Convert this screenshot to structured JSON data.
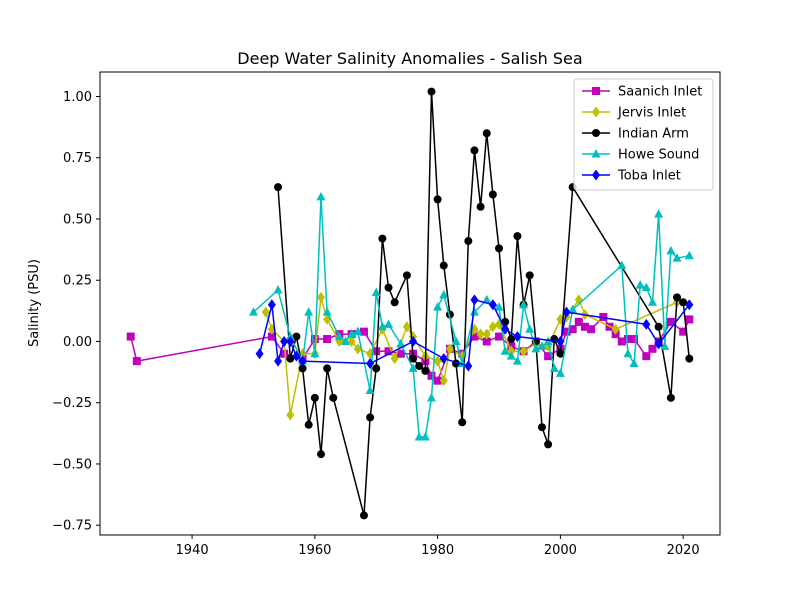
{
  "chart_data": {
    "type": "line",
    "title": "Deep Water Salinity Anomalies - Salish Sea",
    "xlabel": "",
    "ylabel": "Salinity (PSU)",
    "xlim": [
      1925,
      2026
    ],
    "ylim": [
      -0.79,
      1.1
    ],
    "xticks": [
      1940,
      1960,
      1980,
      2000,
      2020
    ],
    "yticks": [
      -0.75,
      -0.5,
      -0.25,
      0.0,
      0.25,
      0.5,
      0.75,
      1.0
    ],
    "ytick_labels": [
      "−0.75",
      "−0.50",
      "−0.25",
      "0.00",
      "0.25",
      "0.50",
      "0.75",
      "1.00"
    ],
    "grid": false,
    "legend_position": "top-right",
    "series": [
      {
        "name": "Saanich Inlet",
        "color": "#bf00bf",
        "marker": "square",
        "x": [
          1930,
          1931,
          1953,
          1955,
          1958,
          1960,
          1962,
          1964,
          1966,
          1968,
          1970,
          1972,
          1974,
          1976,
          1978,
          1979,
          1980,
          1982,
          1984,
          1986,
          1988,
          1990,
          1992,
          1994,
          1996,
          1998,
          2000,
          2001,
          2002,
          2003,
          2004,
          2005,
          2007,
          2008,
          2009,
          2010,
          2011,
          2012,
          2014,
          2015,
          2016,
          2018,
          2020,
          2021
        ],
        "y": [
          0.02,
          -0.08,
          0.02,
          -0.05,
          -0.07,
          0.01,
          0.01,
          0.03,
          0.03,
          0.04,
          -0.04,
          -0.04,
          -0.05,
          -0.05,
          -0.08,
          -0.14,
          -0.16,
          -0.03,
          -0.05,
          0.02,
          0.0,
          0.02,
          -0.02,
          -0.04,
          0.0,
          -0.06,
          -0.03,
          0.04,
          0.05,
          0.08,
          0.06,
          0.05,
          0.1,
          0.06,
          0.03,
          0.0,
          0.01,
          0.01,
          -0.06,
          -0.03,
          0.0,
          0.08,
          0.04,
          0.09
        ]
      },
      {
        "name": "Jervis Inlet",
        "color": "#bfbf00",
        "marker": "diamond",
        "x": [
          1952,
          1953,
          1955,
          1956,
          1958,
          1960,
          1961,
          1962,
          1964,
          1966,
          1967,
          1969,
          1971,
          1973,
          1975,
          1976,
          1978,
          1980,
          1981,
          1982,
          1984,
          1986,
          1987,
          1988,
          1989,
          1990,
          1992,
          1994,
          1996,
          1998,
          2000,
          2001,
          2003,
          2004,
          2009,
          2019
        ],
        "y": [
          0.12,
          0.05,
          0.0,
          -0.3,
          -0.05,
          -0.05,
          0.18,
          0.09,
          0.0,
          0.0,
          -0.03,
          -0.05,
          0.05,
          -0.07,
          0.06,
          0.02,
          -0.06,
          -0.08,
          -0.16,
          -0.03,
          -0.06,
          0.05,
          0.03,
          0.03,
          0.06,
          0.07,
          -0.04,
          -0.04,
          -0.01,
          -0.02,
          0.09,
          0.1,
          0.17,
          0.11,
          0.05,
          0.16
        ]
      },
      {
        "name": "Indian Arm",
        "color": "#000000",
        "marker": "circle",
        "x": [
          1954,
          1956,
          1957,
          1958,
          1959,
          1960,
          1961,
          1962,
          1963,
          1968,
          1969,
          1970,
          1971,
          1972,
          1973,
          1975,
          1976,
          1977,
          1978,
          1979,
          1980,
          1981,
          1982,
          1983,
          1984,
          1985,
          1986,
          1987,
          1988,
          1989,
          1990,
          1991,
          1992,
          1993,
          1994,
          1995,
          1996,
          1997,
          1998,
          1999,
          2000,
          2002,
          2016,
          2018,
          2019,
          2020,
          2021
        ],
        "y": [
          0.63,
          -0.07,
          0.02,
          -0.11,
          -0.34,
          -0.23,
          -0.46,
          -0.11,
          -0.23,
          -0.71,
          -0.31,
          -0.11,
          0.42,
          0.22,
          0.16,
          0.27,
          -0.07,
          -0.1,
          -0.12,
          1.02,
          0.58,
          0.31,
          0.11,
          -0.09,
          -0.33,
          0.41,
          0.78,
          0.55,
          0.85,
          0.6,
          0.38,
          0.08,
          0.01,
          0.43,
          0.15,
          0.27,
          0.0,
          -0.35,
          -0.42,
          0.01,
          -0.05,
          0.63,
          0.06,
          -0.23,
          0.18,
          0.16,
          -0.07
        ]
      },
      {
        "name": "Howe Sound",
        "color": "#00bfbf",
        "marker": "triangle",
        "x": [
          1950,
          1954,
          1956,
          1958,
          1959,
          1960,
          1961,
          1962,
          1964,
          1965,
          1966,
          1967,
          1969,
          1970,
          1971,
          1972,
          1974,
          1976,
          1977,
          1978,
          1979,
          1980,
          1981,
          1983,
          1984,
          1986,
          1988,
          1990,
          1991,
          1992,
          1993,
          1994,
          1995,
          1996,
          1997,
          1998,
          1999,
          2000,
          2002,
          2010,
          2011,
          2012,
          2013,
          2014,
          2015,
          2016,
          2017,
          2018,
          2019,
          2021
        ],
        "y": [
          0.12,
          0.21,
          0.02,
          -0.08,
          0.12,
          -0.05,
          0.59,
          0.12,
          0.02,
          0.0,
          0.03,
          0.04,
          -0.2,
          0.2,
          0.06,
          0.07,
          -0.01,
          -0.11,
          -0.39,
          -0.39,
          -0.23,
          0.14,
          0.19,
          0.0,
          -0.09,
          0.12,
          0.17,
          0.14,
          -0.04,
          -0.06,
          -0.08,
          0.15,
          0.05,
          -0.03,
          -0.02,
          0.0,
          -0.11,
          -0.13,
          0.13,
          0.31,
          -0.05,
          -0.09,
          0.23,
          0.22,
          0.16,
          0.52,
          -0.02,
          0.37,
          0.34,
          0.35
        ]
      },
      {
        "name": "Toba Inlet",
        "color": "#0000ff",
        "marker": "diamond",
        "x": [
          1951,
          1953,
          1954,
          1955,
          1956,
          1957,
          1958,
          1969,
          1976,
          1981,
          1985,
          1986,
          1989,
          1991,
          1993,
          2000,
          2001,
          2014,
          2016,
          2021
        ],
        "y": [
          -0.05,
          0.15,
          -0.08,
          0.0,
          0.0,
          -0.06,
          -0.08,
          -0.09,
          0.0,
          -0.07,
          -0.1,
          0.17,
          0.15,
          0.05,
          0.02,
          0.0,
          0.12,
          0.07,
          -0.01,
          0.15
        ]
      }
    ]
  }
}
